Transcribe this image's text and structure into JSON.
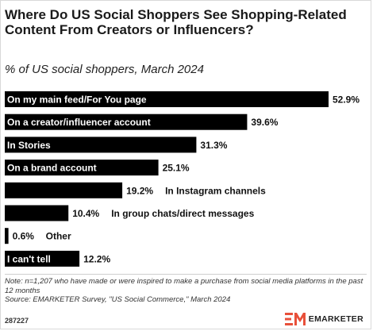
{
  "title": "Where Do US Social Shoppers See Shopping-Related Content From Creators or Influencers?",
  "subtitle": "% of US social shoppers, March 2024",
  "chart_data": {
    "type": "bar",
    "orientation": "horizontal",
    "categories": [
      "On my main feed/For You page",
      "On a creator/influencer account",
      "In Stories",
      "On a brand account",
      "In Instagram channels",
      "In group chats/direct messages",
      "Other",
      "I can't tell"
    ],
    "values": [
      52.9,
      39.6,
      31.3,
      25.1,
      19.2,
      10.4,
      0.6,
      12.2
    ],
    "value_labels": [
      "52.9%",
      "39.6%",
      "31.3%",
      "25.1%",
      "19.2%",
      "10.4%",
      "0.6%",
      "12.2%"
    ],
    "xlim": [
      0,
      52.9
    ],
    "bar_color": "#000000",
    "grid": false,
    "legend": "none"
  },
  "note": "Note: n=1,207 who have made or were inspired to make a purchase from social media platforms in the past 12 months",
  "source": "Source: EMARKETER Survey, \"US Social Commerce,\" March 2024",
  "chart_id": "287227",
  "brand": {
    "name": "EMARKETER",
    "accent_color": "#e8503a"
  }
}
